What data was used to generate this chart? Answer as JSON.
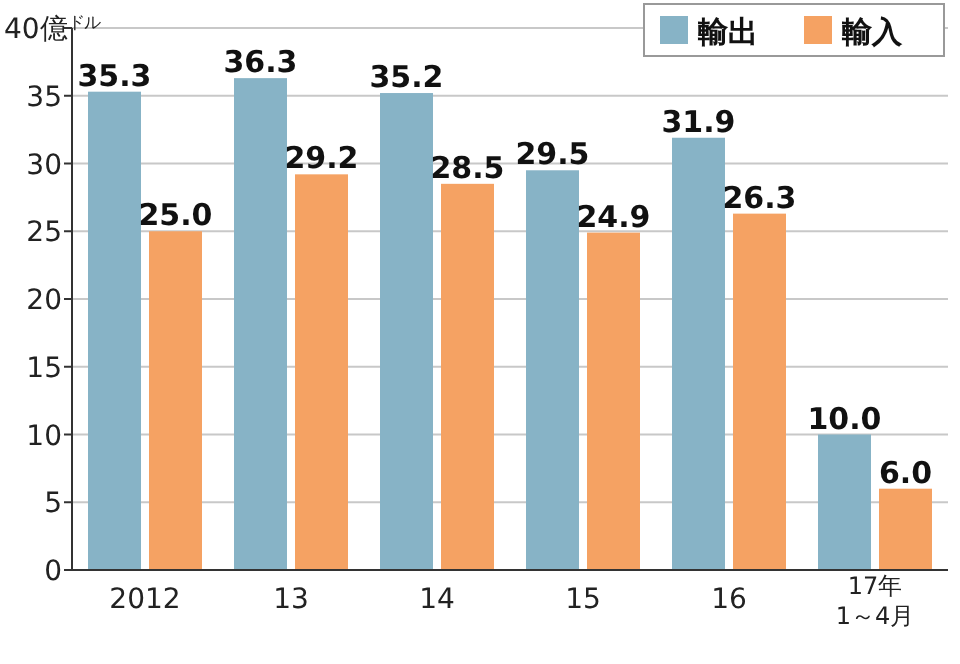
{
  "chart_data": {
    "type": "bar",
    "categories": [
      "2012",
      "13",
      "14",
      "15",
      "16",
      "17年\n1～4月"
    ],
    "series": [
      {
        "name": "輸出",
        "color": "#87b3c6",
        "values": [
          35.3,
          36.3,
          35.2,
          29.5,
          31.9,
          10.0
        ]
      },
      {
        "name": "輸入",
        "color": "#f5a263",
        "values": [
          25.0,
          29.2,
          28.5,
          24.9,
          26.3,
          6.0
        ]
      }
    ],
    "value_labels": [
      [
        "35.3",
        "36.3",
        "35.2",
        "29.5",
        "31.9",
        "10.0"
      ],
      [
        "25.0",
        "29.2",
        "28.5",
        "24.9",
        "26.3",
        "6.0"
      ]
    ],
    "ylim": [
      0,
      40
    ],
    "yticks": [
      0,
      5,
      10,
      15,
      20,
      25,
      30,
      35,
      {
        "value": 40,
        "label": "40億$^{ドル}$"
      }
    ],
    "grid": "y",
    "legend": "top right"
  }
}
